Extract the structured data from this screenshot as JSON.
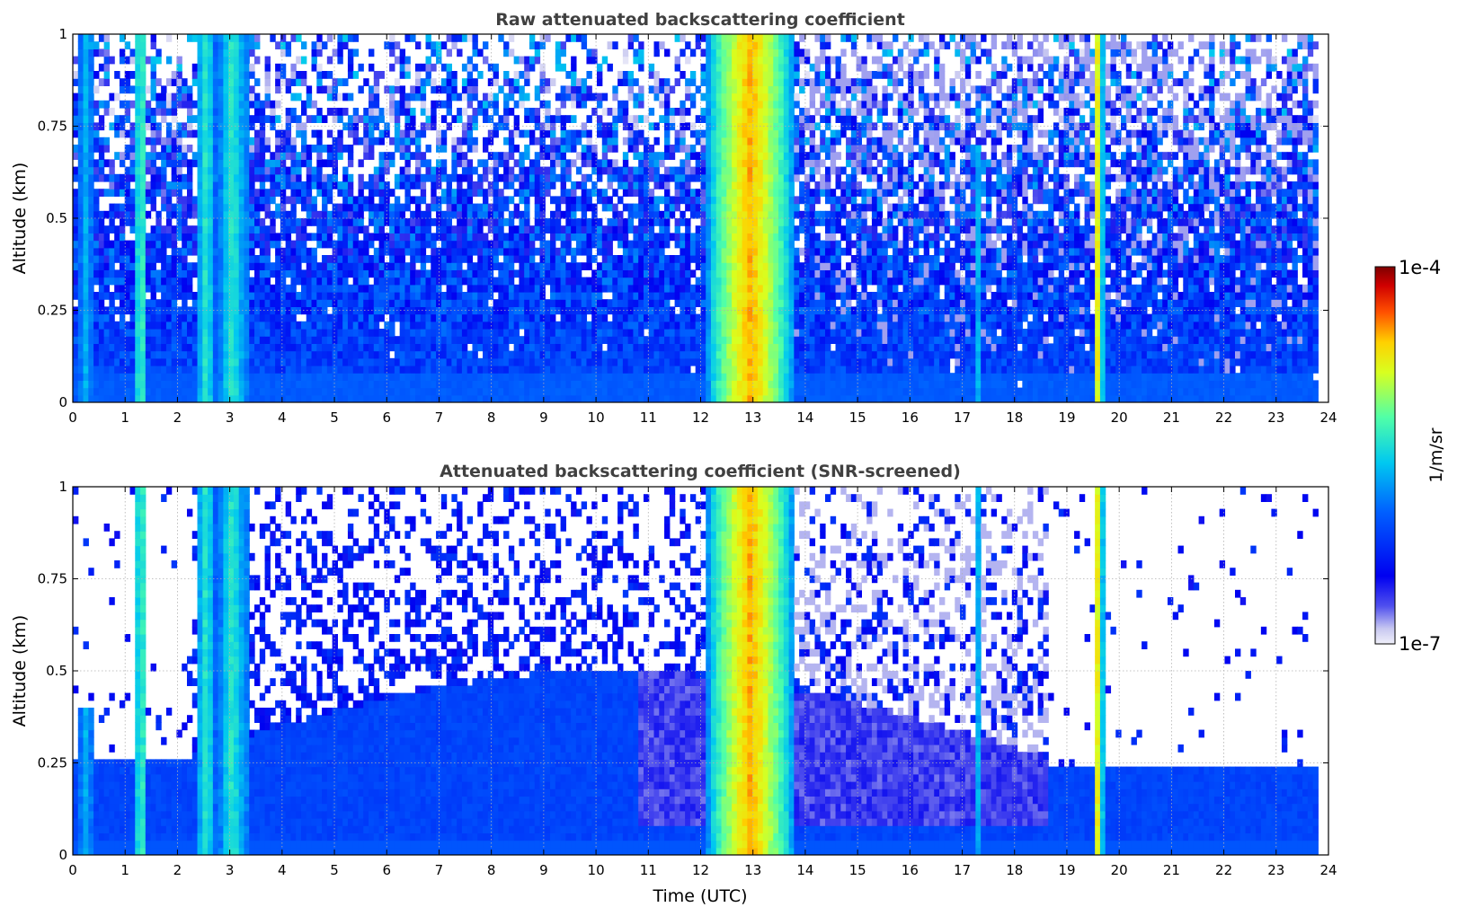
{
  "chart_data": [
    {
      "type": "heatmap",
      "title": "Raw attenuated backscattering coefficient",
      "xlabel": "",
      "ylabel": "Altitude (km)",
      "xlim": [
        0,
        24
      ],
      "ylim": [
        0,
        1
      ],
      "xticks": [
        "0",
        "1",
        "2",
        "3",
        "4",
        "5",
        "6",
        "7",
        "8",
        "9",
        "10",
        "11",
        "12",
        "13",
        "14",
        "15",
        "16",
        "17",
        "18",
        "19",
        "20",
        "21",
        "22",
        "23",
        "24"
      ],
      "yticks": [
        "0",
        "0.25",
        "0.5",
        "0.75",
        "1"
      ],
      "grid": true,
      "data_time_range": [
        0,
        23.8
      ],
      "screened": false,
      "features": [
        {
          "t": 0.25,
          "w": 0.12,
          "top": 1.0,
          "level": 0.45
        },
        {
          "t": 1.3,
          "w": 0.12,
          "top": 1.0,
          "level": 0.6
        },
        {
          "t": 2.55,
          "w": 0.18,
          "top": 1.0,
          "level": 0.55
        },
        {
          "t": 3.05,
          "w": 0.25,
          "top": 1.0,
          "level": 0.55
        },
        {
          "t": 3.3,
          "w": 0.12,
          "top": 1.0,
          "level": 0.4
        },
        {
          "t": 12.95,
          "w": 0.85,
          "top": 1.0,
          "level": 0.82
        },
        {
          "t": 17.3,
          "w": 0.07,
          "top": 0.7,
          "level": 0.45
        },
        {
          "t": 19.6,
          "w": 0.1,
          "top": 1.0,
          "level": 0.78
        }
      ]
    },
    {
      "type": "heatmap",
      "title": "Attenuated backscattering coefficient (SNR-screened)",
      "xlabel": "Time (UTC)",
      "ylabel": "Altitude (km)",
      "xlim": [
        0,
        24
      ],
      "ylim": [
        0,
        1
      ],
      "xticks": [
        "0",
        "1",
        "2",
        "3",
        "4",
        "5",
        "6",
        "7",
        "8",
        "9",
        "10",
        "11",
        "12",
        "13",
        "14",
        "15",
        "16",
        "17",
        "18",
        "19",
        "20",
        "21",
        "22",
        "23",
        "24"
      ],
      "yticks": [
        "0",
        "0.25",
        "0.5",
        "0.75",
        "1"
      ],
      "grid": true,
      "data_time_range": [
        0,
        23.8
      ],
      "screened": true,
      "features": [
        {
          "t": 0.25,
          "w": 0.12,
          "top": 0.4,
          "level": 0.45
        },
        {
          "t": 1.3,
          "w": 0.12,
          "top": 1.0,
          "level": 0.6
        },
        {
          "t": 2.55,
          "w": 0.18,
          "top": 1.0,
          "level": 0.55
        },
        {
          "t": 3.05,
          "w": 0.25,
          "top": 1.0,
          "level": 0.55
        },
        {
          "t": 3.3,
          "w": 0.12,
          "top": 1.0,
          "level": 0.4
        },
        {
          "t": 12.95,
          "w": 0.85,
          "top": 1.0,
          "level": 0.82
        },
        {
          "t": 17.3,
          "w": 0.07,
          "top": 1.0,
          "level": 0.45
        },
        {
          "t": 19.6,
          "w": 0.1,
          "top": 1.0,
          "level": 0.78
        }
      ]
    }
  ],
  "colorbar": {
    "label": "1/m/sr",
    "max_label": "1e-4",
    "min_label": "1e-7",
    "colormap": "jet-with-white-low",
    "range": [
      1e-07,
      0.0001
    ],
    "scale": "log"
  },
  "colors": {
    "title": "#404040",
    "low": "#e8e8f8",
    "background_blue": "#0a3cf5",
    "peak": "#7f0000"
  }
}
